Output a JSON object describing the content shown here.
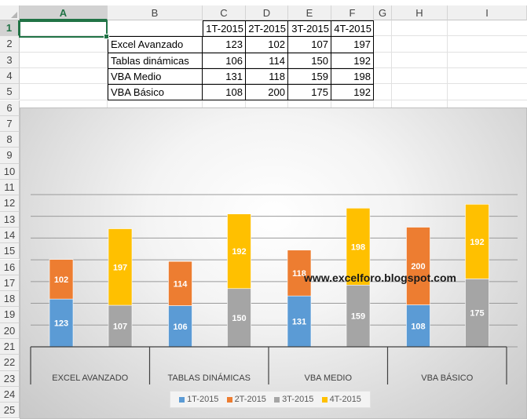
{
  "columns": [
    "A",
    "B",
    "C",
    "D",
    "E",
    "F",
    "G",
    "H",
    "I"
  ],
  "rows": [
    "1",
    "2",
    "3",
    "4",
    "5",
    "6",
    "7",
    "8",
    "9",
    "10",
    "11",
    "12",
    "13",
    "14",
    "15",
    "16",
    "17",
    "18",
    "19",
    "20",
    "21",
    "22",
    "23",
    "24",
    "25"
  ],
  "table": {
    "headers": [
      "1T-2015",
      "2T-2015",
      "3T-2015",
      "4T-2015"
    ],
    "rows": [
      {
        "label": "Excel Avanzado",
        "values": [
          "123",
          "102",
          "107",
          "197"
        ]
      },
      {
        "label": "Tablas dinámicas",
        "values": [
          "106",
          "114",
          "150",
          "192"
        ]
      },
      {
        "label": "VBA Medio",
        "values": [
          "131",
          "118",
          "159",
          "198"
        ]
      },
      {
        "label": "VBA Básico",
        "values": [
          "108",
          "200",
          "175",
          "192"
        ]
      }
    ]
  },
  "watermark": "www.excelforo.blogspot.com",
  "chart_data": {
    "type": "bar",
    "subtype": "stacked-column pairs",
    "categories": [
      "EXCEL AVANZADO",
      "TABLAS DINÁMICAS",
      "VBA MEDIO",
      "VBA BÁSICO"
    ],
    "series": [
      {
        "name": "1T-2015",
        "color": "#5b9bd5",
        "values": [
          123,
          106,
          131,
          108
        ],
        "stack": 0
      },
      {
        "name": "2T-2015",
        "color": "#ed7d31",
        "values": [
          102,
          114,
          118,
          200
        ],
        "stack": 0
      },
      {
        "name": "3T-2015",
        "color": "#a5a5a5",
        "values": [
          107,
          150,
          159,
          175
        ],
        "stack": 1
      },
      {
        "name": "4T-2015",
        "color": "#ffc000",
        "values": [
          197,
          192,
          198,
          192
        ],
        "stack": 1
      }
    ],
    "ylim": [
      0,
      400
    ],
    "grid": true,
    "legend": "bottom"
  }
}
